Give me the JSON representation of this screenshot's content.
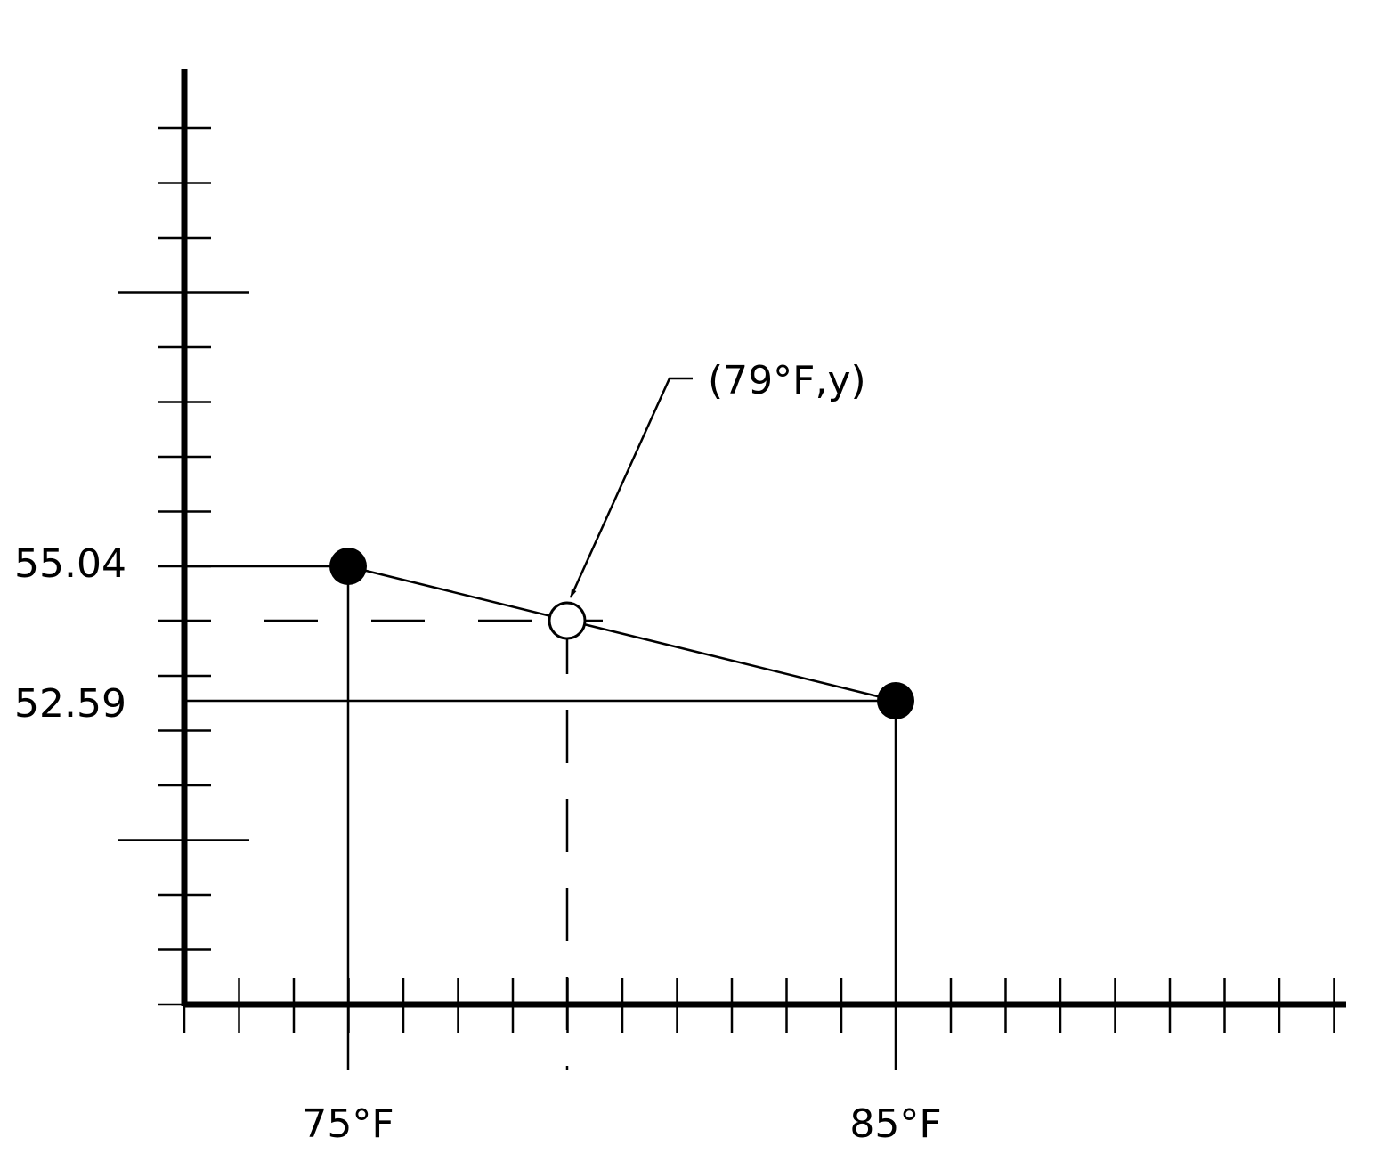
{
  "y_labels": [
    "55.04",
    "52.59"
  ],
  "x_labels": [
    "75°F",
    "85°F"
  ],
  "annotation": "(79°F,y)"
}
